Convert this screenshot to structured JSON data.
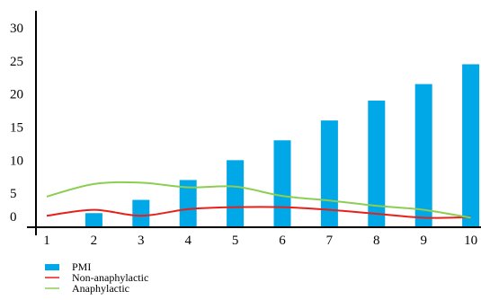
{
  "chart_data": {
    "type": "bar",
    "x": [
      1,
      2,
      3,
      4,
      5,
      6,
      7,
      8,
      9,
      10
    ],
    "x_tick_labels": [
      "1",
      "2",
      "3",
      "4",
      "5",
      "6",
      "7",
      "8",
      "9",
      "10"
    ],
    "y_tick_labels": [
      "0",
      "5",
      "10",
      "15",
      "20",
      "25",
      "30"
    ],
    "ylim": [
      0,
      30
    ],
    "grid": false,
    "legend_position": "bottom-left",
    "series": [
      {
        "name": "PMI",
        "kind": "bar",
        "color": "#00a8e8",
        "values": [
          0,
          2,
          4,
          7,
          10,
          13,
          16,
          19,
          21.5,
          24.5
        ]
      },
      {
        "name": "Non-anaphylactic",
        "kind": "line",
        "color": "#e8201a",
        "values": [
          1.6,
          2.5,
          1.6,
          2.6,
          2.9,
          2.9,
          2.5,
          1.9,
          1.3,
          1.4
        ]
      },
      {
        "name": "Anaphylactic",
        "kind": "line",
        "color": "#8cce52",
        "values": [
          4.5,
          6.4,
          6.6,
          5.9,
          6.0,
          4.6,
          3.9,
          3.1,
          2.5,
          1.3
        ]
      }
    ]
  }
}
